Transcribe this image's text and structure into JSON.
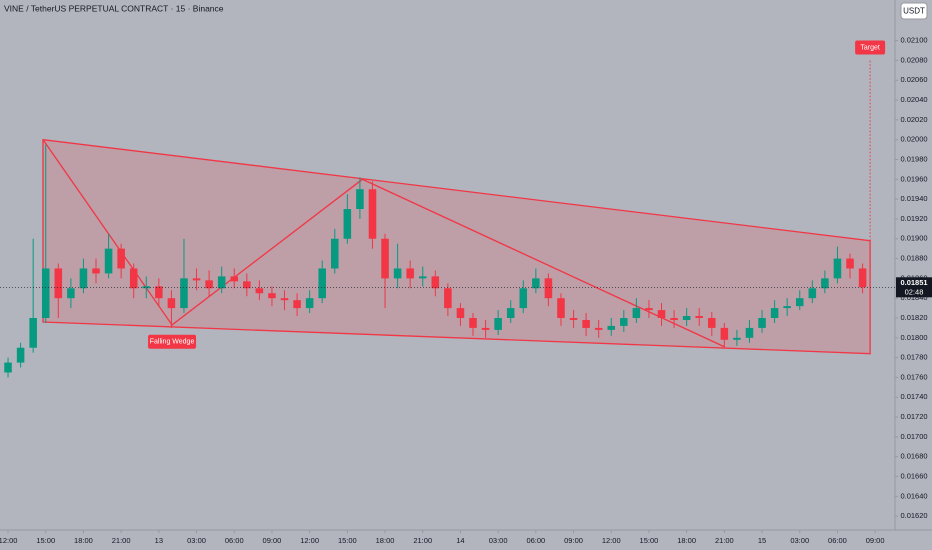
{
  "chart_data": {
    "type": "candlestick",
    "title": "VINE / TetherUS PERPETUAL CONTRACT · 15 · Binance",
    "currency": "USDT",
    "up_color": "#089981",
    "down_color": "#f23645",
    "drawing_color": "#f23645",
    "grid": false,
    "xlim": [
      -0.64,
      70.58
    ],
    "ylim": [
      0.01606,
      0.02141
    ],
    "xticks": [
      {
        "value": 0,
        "label": "12:00"
      },
      {
        "value": 3,
        "label": "15:00"
      },
      {
        "value": 6,
        "label": "18:00"
      },
      {
        "value": 9,
        "label": "21:00"
      },
      {
        "value": 12,
        "label": "13"
      },
      {
        "value": 15,
        "label": "03:00"
      },
      {
        "value": 18,
        "label": "06:00"
      },
      {
        "value": 21,
        "label": "09:00"
      },
      {
        "value": 24,
        "label": "12:00"
      },
      {
        "value": 27,
        "label": "15:00"
      },
      {
        "value": 30,
        "label": "18:00"
      },
      {
        "value": 33,
        "label": "21:00"
      },
      {
        "value": 36,
        "label": "14"
      },
      {
        "value": 39,
        "label": "03:00"
      },
      {
        "value": 42,
        "label": "06:00"
      },
      {
        "value": 45,
        "label": "09:00"
      },
      {
        "value": 48,
        "label": "12:00"
      },
      {
        "value": 51,
        "label": "15:00"
      },
      {
        "value": 54,
        "label": "18:00"
      },
      {
        "value": 57,
        "label": "21:00"
      },
      {
        "value": 60,
        "label": "15"
      },
      {
        "value": 63,
        "label": "03:00"
      },
      {
        "value": 66,
        "label": "06:00"
      },
      {
        "value": 69,
        "label": "09:00"
      }
    ],
    "yticks": [
      {
        "value": 0.021,
        "label": "0.02100"
      },
      {
        "value": 0.0208,
        "label": "0.02080"
      },
      {
        "value": 0.0206,
        "label": "0.02060"
      },
      {
        "value": 0.0204,
        "label": "0.02040"
      },
      {
        "value": 0.0202,
        "label": "0.02020"
      },
      {
        "value": 0.02,
        "label": "0.02000"
      },
      {
        "value": 0.0198,
        "label": "0.01980"
      },
      {
        "value": 0.0196,
        "label": "0.01960"
      },
      {
        "value": 0.0194,
        "label": "0.01940"
      },
      {
        "value": 0.0192,
        "label": "0.01920"
      },
      {
        "value": 0.019,
        "label": "0.01900"
      },
      {
        "value": 0.0188,
        "label": "0.01880"
      },
      {
        "value": 0.0186,
        "label": "0.01860"
      },
      {
        "value": 0.0184,
        "label": "0.01840"
      },
      {
        "value": 0.0182,
        "label": "0.01820"
      },
      {
        "value": 0.018,
        "label": "0.01800"
      },
      {
        "value": 0.0178,
        "label": "0.01780"
      },
      {
        "value": 0.0176,
        "label": "0.01760"
      },
      {
        "value": 0.0174,
        "label": "0.01740"
      },
      {
        "value": 0.0172,
        "label": "0.01720"
      },
      {
        "value": 0.017,
        "label": "0.01700"
      },
      {
        "value": 0.0168,
        "label": "0.01680"
      },
      {
        "value": 0.0166,
        "label": "0.01660"
      },
      {
        "value": 0.0164,
        "label": "0.01640"
      },
      {
        "value": 0.0162,
        "label": "0.01620"
      }
    ],
    "x": [
      0,
      1,
      2,
      3,
      4,
      5,
      6,
      7,
      8,
      9,
      10,
      11,
      12,
      13,
      14,
      15,
      16,
      17,
      18,
      19,
      20,
      21,
      22,
      23,
      24,
      25,
      26,
      27,
      28,
      29,
      30,
      31,
      32,
      33,
      34,
      35,
      36,
      37,
      38,
      39,
      40,
      41,
      42,
      43,
      44,
      45,
      46,
      47,
      48,
      49,
      50,
      51,
      52,
      53,
      54,
      55,
      56,
      57,
      58,
      59,
      60,
      61,
      62,
      63,
      64,
      65,
      66,
      67,
      68
    ],
    "open": [
      0.01765,
      0.01775,
      0.0179,
      0.0182,
      0.0187,
      0.0184,
      0.0185,
      0.0187,
      0.01865,
      0.0189,
      0.0187,
      0.0185,
      0.01852,
      0.0184,
      0.0183,
      0.0186,
      0.01858,
      0.0185,
      0.01862,
      0.01857,
      0.0185,
      0.01845,
      0.0184,
      0.01838,
      0.0183,
      0.0184,
      0.0187,
      0.019,
      0.0193,
      0.0195,
      0.019,
      0.0186,
      0.0187,
      0.0186,
      0.01862,
      0.0185,
      0.0183,
      0.0182,
      0.0181,
      0.01808,
      0.0182,
      0.0183,
      0.0185,
      0.0186,
      0.0184,
      0.0182,
      0.01818,
      0.0181,
      0.01808,
      0.01812,
      0.0182,
      0.0183,
      0.01828,
      0.0182,
      0.01818,
      0.01822,
      0.0182,
      0.0181,
      0.01798,
      0.018,
      0.0181,
      0.0182,
      0.0183,
      0.01832,
      0.0184,
      0.0185,
      0.0186,
      0.0188,
      0.0187
    ],
    "high": [
      0.0178,
      0.01795,
      0.019,
      0.01995,
      0.01875,
      0.0186,
      0.0188,
      0.0188,
      0.01905,
      0.01895,
      0.01875,
      0.01862,
      0.0186,
      0.01848,
      0.019,
      0.0187,
      0.01868,
      0.01872,
      0.0187,
      0.01865,
      0.01858,
      0.01852,
      0.01848,
      0.01845,
      0.01848,
      0.01878,
      0.0191,
      0.01945,
      0.01962,
      0.01958,
      0.01905,
      0.01895,
      0.01878,
      0.01872,
      0.01868,
      0.01855,
      0.01835,
      0.01825,
      0.01818,
      0.01828,
      0.01838,
      0.01858,
      0.0187,
      0.01865,
      0.01845,
      0.01828,
      0.01825,
      0.01818,
      0.0182,
      0.01828,
      0.0184,
      0.01838,
      0.01835,
      0.01828,
      0.0183,
      0.0183,
      0.01826,
      0.01815,
      0.01808,
      0.01818,
      0.01828,
      0.01838,
      0.0184,
      0.01848,
      0.01858,
      0.01868,
      0.01892,
      0.01885,
      0.01875
    ],
    "low": [
      0.0176,
      0.0177,
      0.01785,
      0.01815,
      0.0182,
      0.0183,
      0.01845,
      0.01855,
      0.0186,
      0.0186,
      0.0184,
      0.0184,
      0.01832,
      0.0181,
      0.01825,
      0.01848,
      0.01842,
      0.01845,
      0.0185,
      0.01842,
      0.01838,
      0.01832,
      0.01828,
      0.01822,
      0.01825,
      0.01835,
      0.01865,
      0.01895,
      0.0192,
      0.0189,
      0.0183,
      0.0185,
      0.0185,
      0.01852,
      0.01842,
      0.01822,
      0.01812,
      0.01802,
      0.018,
      0.01803,
      0.01815,
      0.01825,
      0.01845,
      0.01832,
      0.01812,
      0.0181,
      0.01802,
      0.018,
      0.01802,
      0.01806,
      0.01815,
      0.0182,
      0.01812,
      0.0181,
      0.01812,
      0.01812,
      0.01802,
      0.0179,
      0.01792,
      0.01795,
      0.01805,
      0.01815,
      0.01822,
      0.01828,
      0.01835,
      0.01845,
      0.01855,
      0.0186,
      0.01845
    ],
    "close": [
      0.01775,
      0.0179,
      0.0182,
      0.0187,
      0.0184,
      0.0185,
      0.0187,
      0.01865,
      0.0189,
      0.0187,
      0.0185,
      0.01852,
      0.0184,
      0.0183,
      0.0186,
      0.01858,
      0.0185,
      0.01862,
      0.01857,
      0.0185,
      0.01845,
      0.0184,
      0.01838,
      0.0183,
      0.0184,
      0.0187,
      0.019,
      0.0193,
      0.0195,
      0.019,
      0.0186,
      0.0187,
      0.0186,
      0.01862,
      0.0185,
      0.0183,
      0.0182,
      0.0181,
      0.01808,
      0.0182,
      0.0183,
      0.0185,
      0.0186,
      0.0184,
      0.0182,
      0.01818,
      0.0181,
      0.01808,
      0.01812,
      0.0182,
      0.0183,
      0.01828,
      0.0182,
      0.01818,
      0.01822,
      0.0182,
      0.0181,
      0.01798,
      0.018,
      0.0181,
      0.0182,
      0.0183,
      0.01832,
      0.0184,
      0.0185,
      0.0186,
      0.0188,
      0.0187,
      0.01851
    ],
    "current_price": 0.01851,
    "countdown": "02:48",
    "wedge": {
      "x": [
        2.78,
        68.6,
        68.6,
        2.78
      ],
      "y": [
        0.02,
        0.01898,
        0.01784,
        0.01816
      ]
    },
    "zigzag": {
      "x": [
        2.78,
        13.05,
        28.2,
        57.0
      ],
      "y": [
        0.02,
        0.01813,
        0.0196,
        0.01791
      ]
    },
    "target": {
      "label": "Target",
      "x": 68.6,
      "y": 0.02081
    },
    "pattern_label": {
      "label": "Falling Wedge",
      "x": 13.05,
      "y": 0.01796
    }
  }
}
